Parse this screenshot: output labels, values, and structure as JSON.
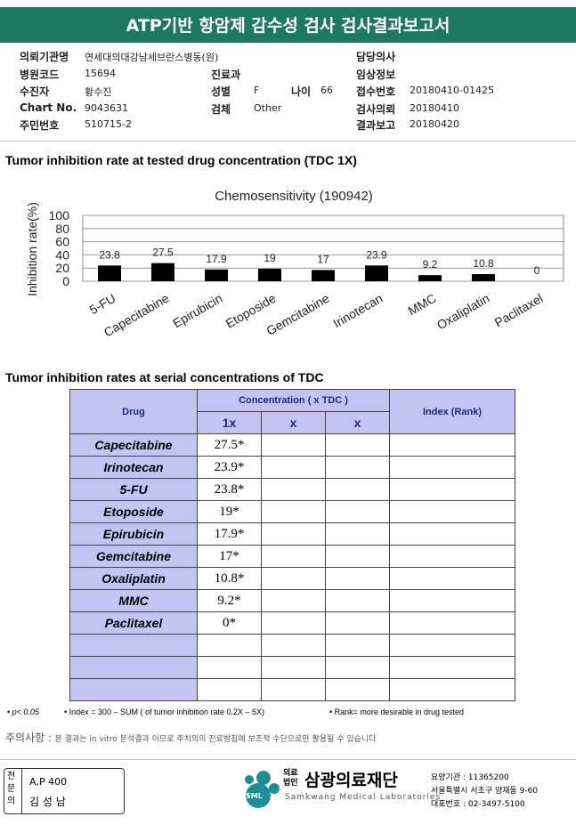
{
  "header": {
    "title": "ATP기반 항암제 감수성 검사 검사결과보고서"
  },
  "info": [
    {
      "label": "의뢰기관명",
      "value": "연세대의대강남세브란스병동(원)"
    },
    {
      "label": "담당의사"
    },
    {
      "label": "병원코드",
      "value": "15694"
    },
    {
      "label": "진료과"
    },
    {
      "label": "임상정보"
    },
    {
      "label": "수진자",
      "value": "황수진"
    },
    {
      "label": "성별",
      "value": "F"
    },
    {
      "label": "나이",
      "value": "66"
    },
    {
      "label": "접수번호",
      "value": "20180410-01425"
    },
    {
      "label": "Chart No.",
      "value": "9043631"
    },
    {
      "label": "검체",
      "value": "Other"
    },
    {
      "label": "검사의뢰",
      "value": "20180410"
    },
    {
      "label": "주민번호",
      "value": "510715-2"
    },
    {
      "label": "결과보고",
      "value": "20180420"
    }
  ],
  "section1": "Tumor inhibition rate at tested drug concentration (TDC 1X)",
  "chart_data": {
    "type": "bar",
    "title": "Chemosensitivity (190942)",
    "y_label": "Inhibition rate(%)",
    "categories": [
      "5-FU",
      "Capecitabine",
      "Epirubicin",
      "Etoposide",
      "Gemcitabine",
      "Irinotecan",
      "MMC",
      "Oxaliplatin",
      "Paclitaxel"
    ],
    "values": [
      23.8,
      27.5,
      17.9,
      19,
      17,
      23.9,
      9.2,
      10.8,
      0
    ],
    "color": "#000000",
    "ylim": [
      0,
      100
    ],
    "yticks": [
      0,
      20,
      40,
      60,
      80,
      100
    ],
    "grid": true
  },
  "table": {
    "title": "Tumor inhibition rates at serial concentrations of TDC",
    "header": {
      "drug": "Drug",
      "concentration": "Concentration ( x TDC )",
      "columns": [
        "1x",
        "x",
        "x"
      ],
      "index": "Index (Rank)"
    },
    "rows": [
      [
        "Capecitabine",
        "27.5*"
      ],
      [
        "Irinotecan",
        "23.9*"
      ],
      [
        "5-FU",
        "23.8*"
      ],
      [
        "Etoposide",
        "19*"
      ],
      [
        "Epirubicin",
        "17.9*"
      ],
      [
        "Gemcitabine",
        "17*"
      ],
      [
        "Oxaliplatin",
        "10.8*"
      ],
      [
        "MMC",
        "9.2*"
      ],
      [
        "Paclitaxel",
        "0*"
      ]
    ]
  },
  "footnotes": [
    "p< 0.05",
    "Index = 300 – SUM ( of tumor inhibition rate 0.2X – 5X)",
    "Rank= more desirable in drug tested"
  ],
  "notice": {
    "label": "주의사항 :",
    "text": "본 결과는 in vitro 분석결과 이므로 주치의의 진료방침에 보조적 수단으로만 활용될 수 있습니다"
  },
  "signature": {
    "role": "전문의",
    "code": "A,P 400",
    "name": "김 성 남"
  },
  "organization": {
    "prefix": "의료법인",
    "name": "삼광의료재단",
    "english": "Samkwang Medical Laboratories",
    "logo": "SML",
    "lines": [
      "요양기관 : 11365200",
      "서울특별시 서초구 양재동 9-60",
      "대표번호 : 02-3497-5100"
    ]
  }
}
